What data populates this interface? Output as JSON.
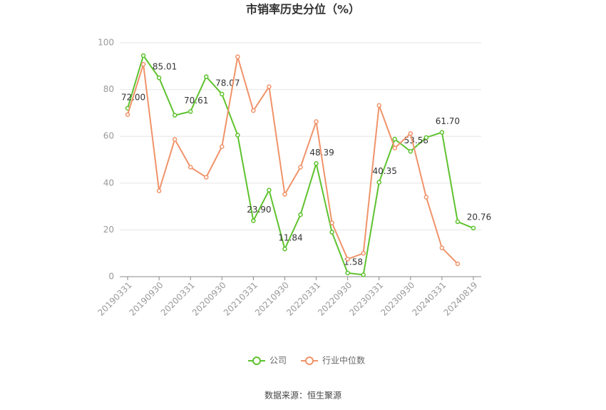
{
  "chart_data": {
    "type": "line",
    "title": "市销率历史分位（%）",
    "categories": [
      "20190331",
      null,
      "20190930",
      null,
      "20200331",
      null,
      "20200930",
      null,
      "20210331",
      null,
      "20210930",
      null,
      "20220331",
      null,
      "20220930",
      null,
      "20230331",
      null,
      "20230930",
      null,
      "20240331",
      null,
      "20240819"
    ],
    "series": [
      {
        "name": "公司",
        "color": "#5ec22e",
        "values": [
          72.0,
          94.5,
          85.01,
          69,
          70.61,
          85.5,
          78.07,
          60.5,
          23.9,
          37,
          11.84,
          26.5,
          48.39,
          19,
          1.58,
          0.8,
          40.35,
          58.8,
          53.58,
          59.5,
          61.7,
          23.5,
          20.76
        ],
        "value_labels": [
          "72.00",
          null,
          "85.01",
          null,
          "70.61",
          null,
          "78.07",
          null,
          "23.90",
          null,
          "11.84",
          null,
          "48.39",
          null,
          "1.58",
          null,
          "40.35",
          null,
          "53.58",
          null,
          "61.70",
          null,
          "20.76"
        ]
      },
      {
        "name": "行业中位数",
        "color": "#f0936a",
        "values": [
          69.3,
          90.8,
          36.7,
          58.7,
          46.8,
          42.5,
          55.6,
          94,
          71,
          81.2,
          35.2,
          46.8,
          66.3,
          23,
          7.5,
          10,
          73.2,
          55,
          61.2,
          34,
          12.3,
          5.5,
          null
        ]
      }
    ],
    "ylim": [
      0,
      100
    ],
    "yticks": [
      0,
      20,
      40,
      60,
      80,
      100
    ],
    "grid": true,
    "legend": "bottom",
    "source": "数据来源：恒生聚源"
  }
}
